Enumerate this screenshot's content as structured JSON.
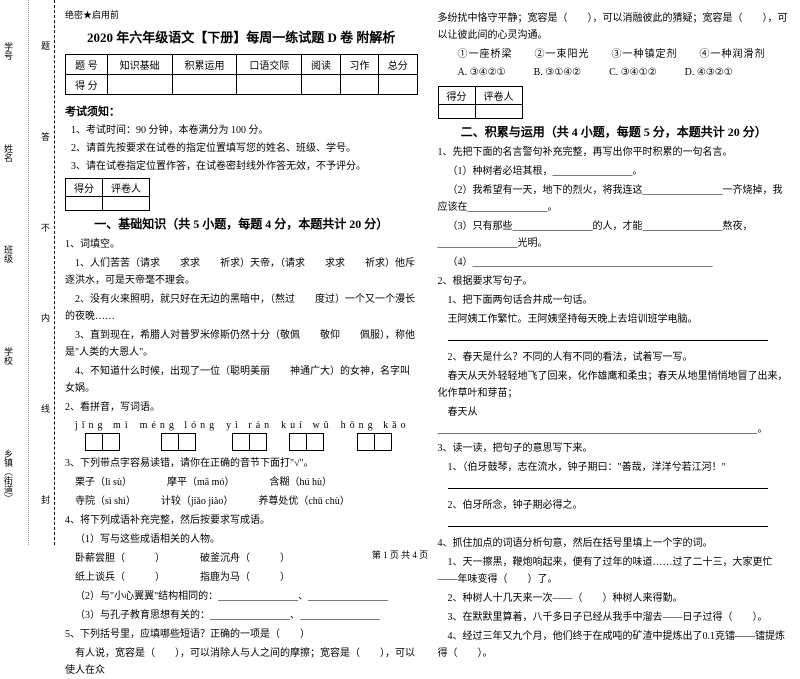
{
  "secret": "绝密★启用前",
  "title": "2020 年六年级语文【下册】每周一练试题 D 卷 附解析",
  "scoreTable": {
    "headers": [
      "题 号",
      "知识基础",
      "积累运用",
      "口语交际",
      "阅读",
      "习作",
      "总分"
    ],
    "row2Label": "得 分"
  },
  "noticeHeader": "考试须知：",
  "notices": [
    "1、考试时间：90 分钟，本卷满分为 100 分。",
    "2、请首先按要求在试卷的指定位置填写您的姓名、班级、学号。",
    "3、请在试卷指定位置作答，在试卷密封线外作答无效，不予评分。"
  ],
  "scoreBox": {
    "c1": "得分",
    "c2": "评卷人"
  },
  "section1": "一、基础知识（共 5 小题，每题 4 分，本题共计 20 分）",
  "q1": {
    "stem": "1、词填空。",
    "l1": "1、人们苦苦（请求　　求求　　祈求）天帝，（请求　　求求　　祈求）他斥逐洪水，可是天帝毫不理会。",
    "l2": "2、没有火来照明，就只好在无边的黑暗中，（熬过　　度过）一个又一个漫长的夜晚……",
    "l3": "3、直到现在，希腊人对普罗米修斯仍然十分（敬佩　　敬仰　　佩服），称他是\"人类的大恩人\"。",
    "l4": "4、不知道什么时候，出现了一位（聪明美丽　　神通广大）的女神，名字叫女娲。"
  },
  "q2": {
    "stem": "2、看拼音，写词语。"
  },
  "pinyin": [
    "jǐng mì",
    "méng lóng",
    "yì rán",
    "kuí wǔ",
    "hōng kǎo"
  ],
  "q3": {
    "stem": "3、下列带点字容易读错，请你在正确的音节下面打\"√\"。",
    "l1": "栗子（lì  sù）　　　　摩平（mā  mó）　　　　含糊（hú  hù）",
    "l2": "寺院（sì  shì）　　　计较（jiǎo  jiào）　　　养尊处优（chǔ  chù）"
  },
  "q4": {
    "stem": "4、将下列成语补充完整，然后按要求写成语。",
    "l1": "（1）写与这些成语相关的人物。",
    "l2": "卧薪尝胆（　　　）　　　　破釜沉舟（　　　）",
    "l3": "纸上谈兵（　　　）　　　　指鹿为马（　　　）",
    "l4": "（2）与\"小心翼翼\"结构相同的：________________、________________",
    "l5": "（3）与孔子教育思想有关的：________________、________________"
  },
  "q5": {
    "stem": "5、下列括号里，应填哪些短语？正确的一项是（　　）",
    "l1": "有人说，宽容是（　　），可以消除人与人之间的摩擦；宽容是（　　），可以使人在众"
  },
  "col2top": {
    "l1": "多纷扰中恪守平静；宽容是（　　），可以消融彼此的猜疑；宽容是（　　），可以让彼此间的心灵沟通。",
    "opts": "①一座桥梁　　②一束阳光　　③一种镇定剂　　④一种润滑剂",
    "choices": [
      "A. ③④②①",
      "B. ③①④②",
      "C. ③④①②",
      "D. ④③②①"
    ]
  },
  "section2": "二、积累与运用（共 4 小题，每题 5 分，本题共计 20 分）",
  "p2q1": {
    "stem": "1、先把下面的名言警句补充完整，再写出你平时积累的一句名言。",
    "l1": "（1）种树者必培其根，________________。",
    "l2": "（2）我希望有一天，地下的烈火，将我连这________________一齐烧掉，我应该在________________。",
    "l3": "（3）只有那些________________的人，才能________________熬夜，________________光明。",
    "l4": "（4）________________________________________________"
  },
  "p2q2": {
    "stem": "2、根据要求写句子。",
    "l1": "1、把下面两句话合并成一句话。",
    "l2": "王阿姨工作繁忙。王阿姨坚持每天晚上去培训班学电脑。",
    "l3line": true,
    "l4": "2、春天是什么？不同的人有不同的看法，试着写一写。",
    "l5": "春天从天外轻轻地飞了回来，化作雄鹰和柔虫；春天从地里悄悄地冒了出来，化作草叶和芽苗；",
    "l6": "春天从________________________________________________________________。"
  },
  "p2q3": {
    "stem": "3、读一读，把句子的意思写下来。",
    "l1": "1、（伯牙鼓琴，志在流水，钟子期曰：\"善哉，洋洋兮若江河！\"",
    "l2line": true,
    "l3": "2、伯牙所念，钟子期必得之。",
    "l4line": true
  },
  "p2q4": {
    "stem": "4、抓住加点的词语分析句意，然后在括号里填上一个字的词。",
    "l1": "1、天一擦黑，鞭炮响起来，便有了过年的味道……过了二十三，大家更忙——年味变得（　　）了。",
    "l2": "2、种树人十几天来一次——（　　）种树人来得勤。",
    "l3": "3、在默默里算着，八千多日子已经从我手中溜去——日子过得（　　）。",
    "l4": "4、经过三年又九个月，他们终于在成吨的矿渣中提炼出了0.1克镭——镭提炼得（　　）。"
  },
  "binding": {
    "left": [
      "乡镇（街道）",
      "学校",
      "班级",
      "姓名",
      "学号"
    ],
    "right": [
      "封",
      "线",
      "内",
      "不",
      "答",
      "题"
    ]
  },
  "footer": "第 1 页 共 4 页"
}
